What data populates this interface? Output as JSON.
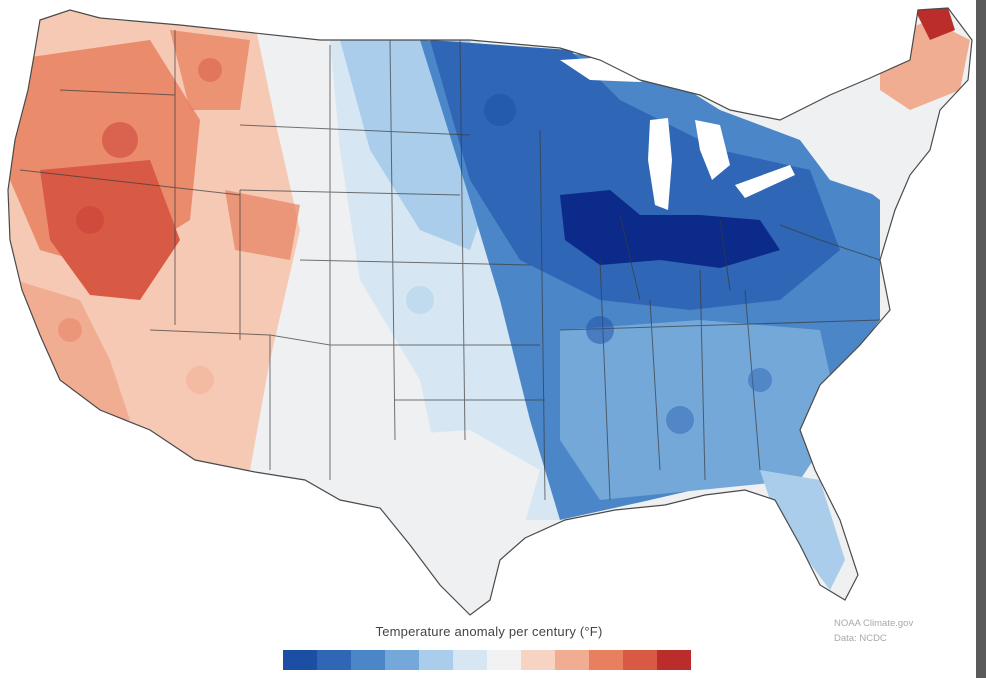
{
  "map": {
    "legend_title": "Temperature anomaly per century (°F)",
    "credit": [
      "NOAA Climate.gov",
      "Data: NCDC"
    ],
    "colors": {
      "strong_cool": "#1c4fa3",
      "deep_cool": "#0b2a8a",
      "cool": "#4a86c8",
      "mild_cool": "#a9cdea",
      "neutral": "#eef0f2",
      "mild_warm": "#f6c9b4",
      "warm": "#e8805f",
      "strong_warm": "#c83c32",
      "state_border": "#3b3b3b"
    },
    "scale_colors": [
      "#1c4fa3",
      "#2f66b6",
      "#4a86c8",
      "#74a8d9",
      "#a9cdea",
      "#d6e6f3",
      "#f2f2f2",
      "#f6d3c3",
      "#f1ad92",
      "#e8805f",
      "#d85a45",
      "#bb2d2a"
    ]
  }
}
